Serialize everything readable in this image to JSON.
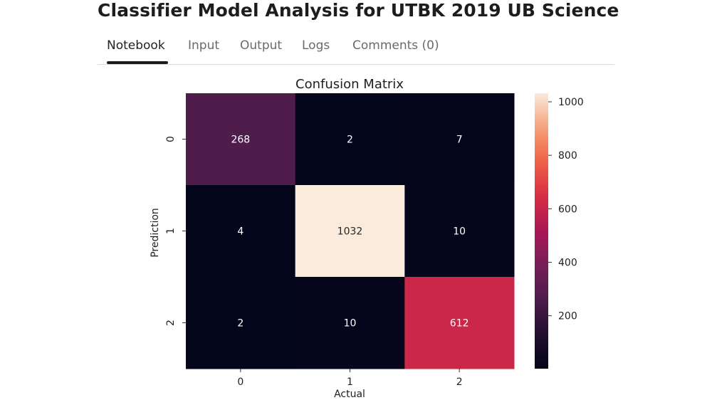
{
  "page": {
    "title": "Classifier Model Analysis for UTBK 2019 UB Science"
  },
  "tabs": [
    {
      "label": "Notebook",
      "active": true
    },
    {
      "label": "Input",
      "active": false
    },
    {
      "label": "Output",
      "active": false
    },
    {
      "label": "Logs",
      "active": false
    },
    {
      "label": "Comments (0)",
      "active": false
    }
  ],
  "chart_data": {
    "type": "heatmap",
    "title": "Confusion Matrix",
    "xlabel": "Actual",
    "ylabel": "Prediction",
    "x_categories": [
      "0",
      "1",
      "2"
    ],
    "y_categories": [
      "0",
      "1",
      "2"
    ],
    "values": [
      [
        268,
        2,
        7
      ],
      [
        4,
        1032,
        10
      ],
      [
        2,
        10,
        612
      ]
    ],
    "colormap": "rocket",
    "colorbar": {
      "range": [
        2,
        1032
      ],
      "ticks": [
        200,
        400,
        600,
        800,
        1000
      ]
    },
    "colors": {
      "light_text": "#ffffff",
      "dark_text": "#262626"
    }
  }
}
